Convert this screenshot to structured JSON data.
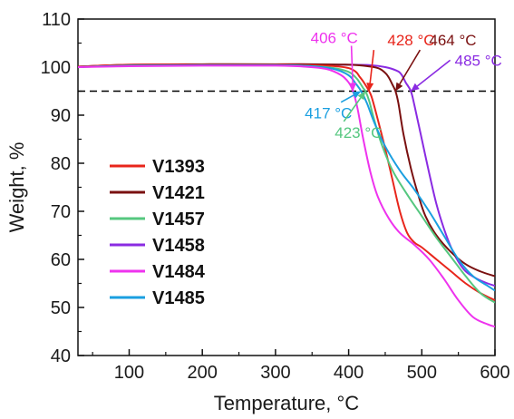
{
  "chart_data": {
    "type": "line",
    "xlabel": "Temperature, °C",
    "ylabel": "Weight, %",
    "xlim": [
      30,
      600
    ],
    "ylim": [
      40,
      110
    ],
    "xticks": [
      100,
      200,
      300,
      400,
      500,
      600
    ],
    "yticks": [
      40,
      50,
      60,
      70,
      80,
      90,
      100,
      110
    ],
    "grid": false,
    "legend_position": "left",
    "reference_line": {
      "y": 95,
      "style": "dashed",
      "color": "#000000"
    },
    "series": [
      {
        "name": "V1393",
        "color": "#e8251b",
        "onset_label": "428 °C",
        "x": [
          30,
          100,
          200,
          300,
          350,
          380,
          400,
          410,
          415,
          420,
          425,
          428,
          432,
          440,
          450,
          460,
          470,
          480,
          490,
          500,
          520,
          540,
          560,
          580,
          600
        ],
        "y": [
          100.1,
          100.5,
          100.5,
          100.5,
          100.4,
          100.2,
          99.8,
          99.0,
          98.0,
          97.0,
          95.8,
          95.0,
          93.5,
          89.0,
          83.0,
          76.5,
          70.0,
          65.5,
          63.5,
          62.5,
          60.0,
          57.5,
          55.0,
          53.0,
          51.5
        ]
      },
      {
        "name": "V1421",
        "color": "#7a1010",
        "onset_label": "464 °C",
        "x": [
          30,
          100,
          200,
          300,
          350,
          400,
          420,
          440,
          450,
          455,
          460,
          464,
          468,
          475,
          485,
          495,
          505,
          520,
          540,
          560,
          580,
          600
        ],
        "y": [
          100.1,
          100.5,
          100.6,
          100.6,
          100.6,
          100.5,
          100.3,
          99.8,
          98.8,
          97.8,
          96.3,
          95.0,
          92.5,
          86.0,
          79.0,
          73.5,
          69.0,
          65.0,
          61.5,
          59.0,
          57.5,
          56.5
        ]
      },
      {
        "name": "V1457",
        "color": "#55c77f",
        "onset_label": "423 °C",
        "x": [
          30,
          100,
          200,
          300,
          350,
          380,
          400,
          410,
          415,
          420,
          423,
          428,
          435,
          445,
          460,
          480,
          500,
          520,
          540,
          560,
          580,
          600
        ],
        "y": [
          100.0,
          100.3,
          100.4,
          100.4,
          100.2,
          99.8,
          99.0,
          97.8,
          96.8,
          95.6,
          95.0,
          93.0,
          89.0,
          84.0,
          78.5,
          73.5,
          69.0,
          64.5,
          60.5,
          56.5,
          53.0,
          51.0
        ]
      },
      {
        "name": "V1458",
        "color": "#8a2be2",
        "onset_label": "485 °C",
        "x": [
          30,
          100,
          200,
          300,
          350,
          400,
          430,
          450,
          465,
          472,
          478,
          485,
          490,
          500,
          510,
          520,
          530,
          540,
          550,
          560,
          575,
          590,
          600
        ],
        "y": [
          100.1,
          100.4,
          100.5,
          100.5,
          100.5,
          100.5,
          100.4,
          100.0,
          99.3,
          98.5,
          96.8,
          95.0,
          92.0,
          85.0,
          78.0,
          71.5,
          66.5,
          62.5,
          59.5,
          57.5,
          56.0,
          55.0,
          54.5
        ]
      },
      {
        "name": "V1484",
        "color": "#ee33ee",
        "onset_label": "406 °C",
        "x": [
          30,
          100,
          200,
          300,
          340,
          370,
          390,
          400,
          406,
          412,
          420,
          430,
          440,
          455,
          470,
          490,
          510,
          530,
          550,
          570,
          590,
          600
        ],
        "y": [
          100.0,
          100.2,
          100.3,
          100.3,
          100.1,
          99.6,
          98.3,
          96.8,
          95.0,
          91.5,
          85.0,
          78.0,
          73.0,
          68.5,
          65.5,
          63.0,
          60.0,
          56.0,
          51.5,
          48.0,
          46.5,
          46.0
        ]
      },
      {
        "name": "V1485",
        "color": "#1a9fe0",
        "onset_label": "417 °C",
        "x": [
          30,
          100,
          200,
          300,
          350,
          380,
          400,
          410,
          417,
          425,
          435,
          450,
          470,
          490,
          510,
          530,
          550,
          570,
          590,
          600
        ],
        "y": [
          100.0,
          100.3,
          100.4,
          100.4,
          100.2,
          99.6,
          98.3,
          96.5,
          95.0,
          92.5,
          88.5,
          83.5,
          78.5,
          74.5,
          70.0,
          65.0,
          60.0,
          56.5,
          54.5,
          53.5
        ]
      }
    ],
    "annotations": [
      {
        "series": "V1484",
        "text": "406 °C",
        "label_x": 348,
        "label_y": 105.0,
        "tip_x": 406,
        "tip_y": 95.0
      },
      {
        "series": "V1393",
        "text": "428 °C",
        "label_x": 453,
        "label_y": 104.5,
        "tip_x": 428,
        "tip_y": 95.0
      },
      {
        "series": "V1421",
        "text": "464 °C",
        "label_x": 510,
        "label_y": 104.5,
        "tip_x": 464,
        "tip_y": 95.0
      },
      {
        "series": "V1458",
        "text": "485 °C",
        "label_x": 545,
        "label_y": 100.3,
        "tip_x": 485,
        "tip_y": 95.0
      },
      {
        "series": "V1485",
        "text": "417 °C",
        "label_x": 340,
        "label_y": 89.3,
        "tip_x": 417,
        "tip_y": 95.0
      },
      {
        "series": "V1457",
        "text": "423 °C",
        "label_x": 381,
        "label_y": 85.3,
        "tip_x": 423,
        "tip_y": 95.0
      }
    ]
  }
}
